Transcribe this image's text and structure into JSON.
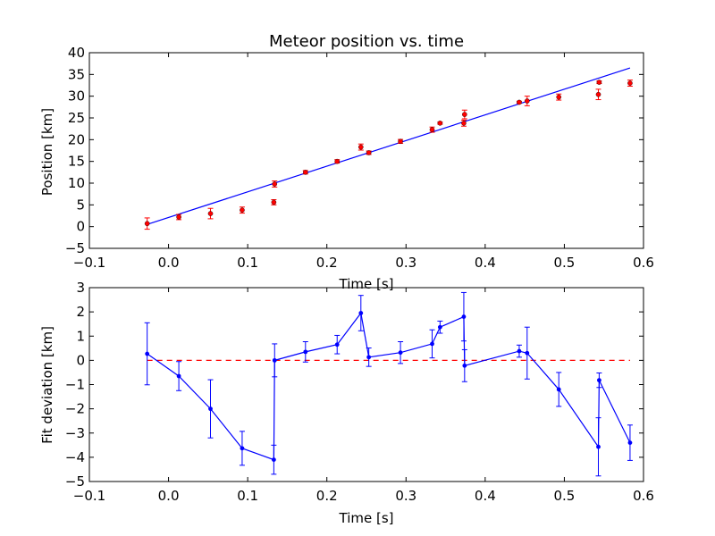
{
  "chart_data": [
    {
      "type": "scatter",
      "title": "Meteor position vs. time",
      "xlabel": "Time [s]",
      "ylabel": "Position [km]",
      "xlim": [
        -0.1,
        0.6
      ],
      "ylim": [
        -5,
        40
      ],
      "xticks": [
        -0.1,
        0.0,
        0.1,
        0.2,
        0.3,
        0.4,
        0.5,
        0.6
      ],
      "xtick_labels": [
        "−0.1",
        "0.0",
        "0.1",
        "0.2",
        "0.3",
        "0.4",
        "0.5",
        "0.6"
      ],
      "yticks": [
        -5,
        0,
        5,
        10,
        15,
        20,
        25,
        30,
        35,
        40
      ],
      "ytick_labels": [
        "−5",
        "0",
        "5",
        "10",
        "15",
        "20",
        "25",
        "30",
        "35",
        "40"
      ],
      "grid": false,
      "points_color": "#ff0000",
      "fit_color": "#0000ff",
      "points": {
        "x": [
          -0.027,
          0.013,
          0.053,
          0.093,
          0.133,
          0.134,
          0.173,
          0.213,
          0.243,
          0.253,
          0.293,
          0.333,
          0.343,
          0.373,
          0.374,
          0.443,
          0.453,
          0.493,
          0.543,
          0.544,
          0.583
        ],
        "y": [
          0.7,
          2.2,
          3.0,
          3.8,
          5.6,
          9.8,
          12.5,
          15.0,
          18.3,
          17.0,
          19.6,
          22.3,
          23.8,
          23.8,
          25.8,
          28.6,
          28.9,
          29.8,
          30.4,
          33.2,
          33.0
        ],
        "yerr": [
          1.3,
          0.6,
          1.2,
          0.7,
          0.6,
          0.7,
          0.4,
          0.4,
          0.7,
          0.4,
          0.45,
          0.6,
          0.25,
          0.7,
          1.0,
          0.25,
          1.1,
          0.7,
          1.2,
          0.3,
          0.7
        ]
      },
      "fit_line": {
        "x": [
          -0.027,
          0.583
        ],
        "y": [
          0.5,
          36.5
        ]
      }
    },
    {
      "type": "line",
      "title": "",
      "xlabel": "Time [s]",
      "ylabel": "Fit deviation [km]",
      "xlim": [
        -0.1,
        0.6
      ],
      "ylim": [
        -5,
        3
      ],
      "xticks": [
        -0.1,
        0.0,
        0.1,
        0.2,
        0.3,
        0.4,
        0.5,
        0.6
      ],
      "xtick_labels": [
        "−0.1",
        "0.0",
        "0.1",
        "0.2",
        "0.3",
        "0.4",
        "0.5",
        "0.6"
      ],
      "yticks": [
        -5,
        -4,
        -3,
        -2,
        -1,
        0,
        1,
        2,
        3
      ],
      "ytick_labels": [
        "−5",
        "−4",
        "−3",
        "−2",
        "−1",
        "0",
        "1",
        "2",
        "3"
      ],
      "grid": false,
      "series_color": "#0000ff",
      "zero_line_color": "#ff0000",
      "zero_line_y": 0,
      "series": {
        "x": [
          -0.027,
          0.013,
          0.053,
          0.093,
          0.133,
          0.134,
          0.173,
          0.213,
          0.243,
          0.253,
          0.293,
          0.333,
          0.343,
          0.373,
          0.374,
          0.443,
          0.453,
          0.493,
          0.543,
          0.544,
          0.583
        ],
        "y": [
          0.27,
          -0.65,
          -2.0,
          -3.63,
          -4.1,
          0.0,
          0.35,
          0.65,
          1.95,
          0.13,
          0.32,
          0.68,
          1.37,
          1.8,
          -0.22,
          0.38,
          0.3,
          -1.2,
          -3.57,
          -0.82,
          -3.4
        ],
        "yerr": [
          1.28,
          0.6,
          1.2,
          0.7,
          0.6,
          0.68,
          0.42,
          0.38,
          0.73,
          0.38,
          0.45,
          0.58,
          0.25,
          1.0,
          0.66,
          0.25,
          1.07,
          0.7,
          1.2,
          0.3,
          0.73
        ]
      }
    }
  ]
}
